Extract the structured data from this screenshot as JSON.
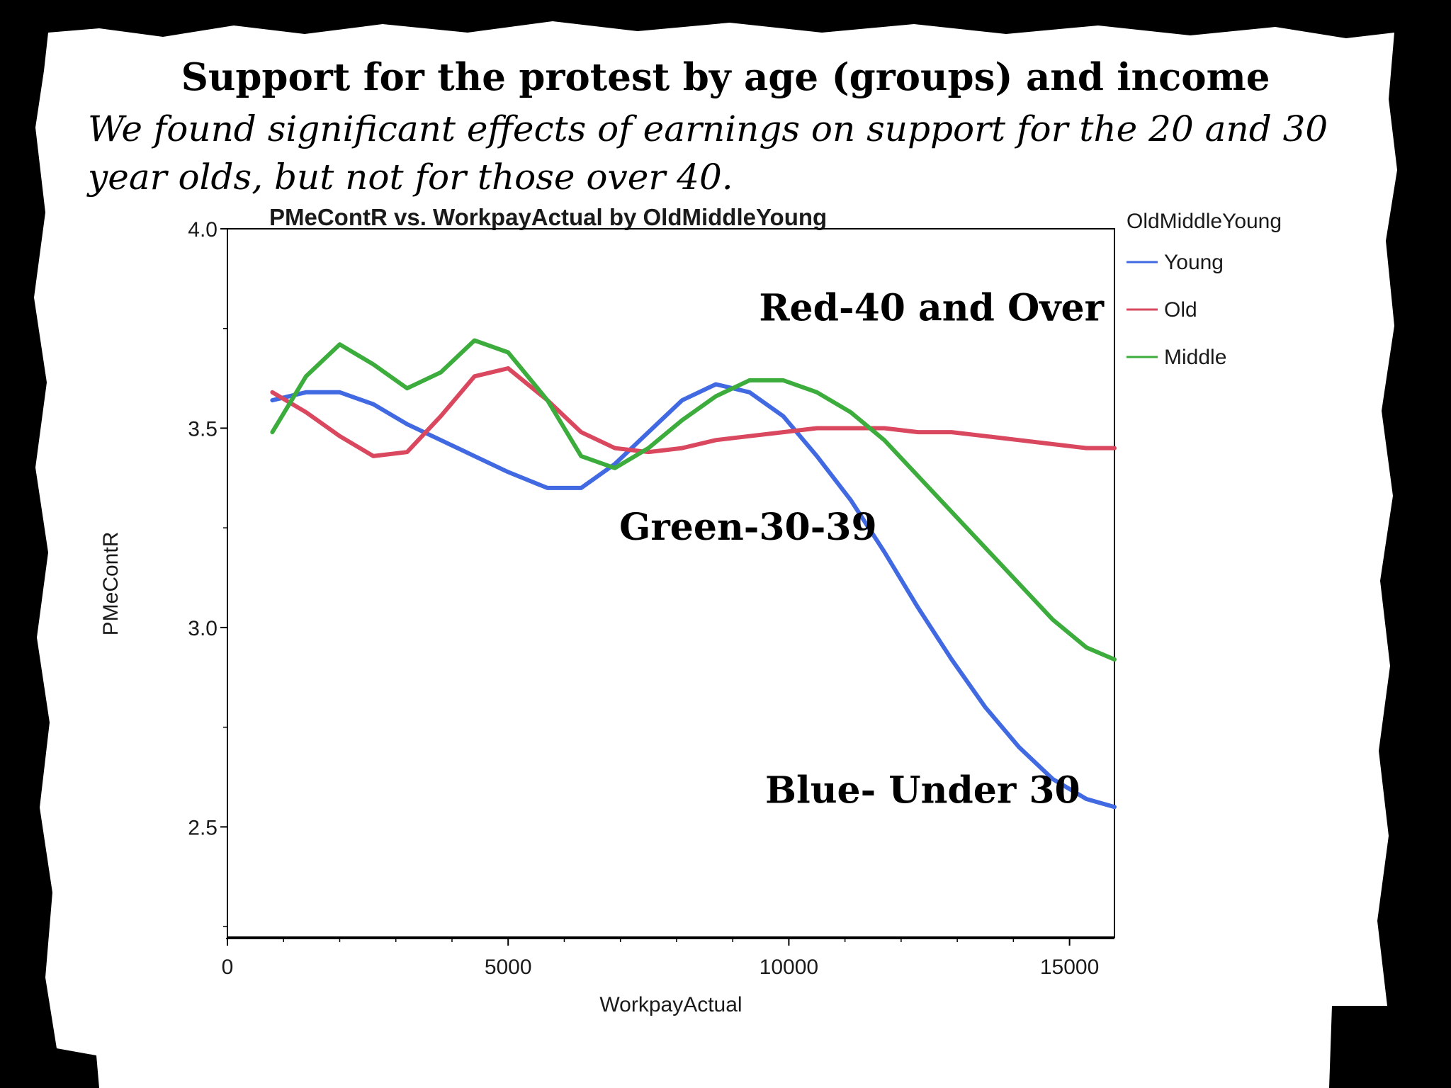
{
  "slide": {
    "title": "Support for the protest by age (groups) and income",
    "subtitle": "We found significant effects of earnings on support for the 20 and 30 year olds, but not for those over 40."
  },
  "chart_data": {
    "type": "line",
    "title": "PMeContR vs. WorkpayActual by OldMiddleYoung",
    "xlabel": "WorkpayActual",
    "ylabel": "PMeContR",
    "xlim": [
      0,
      15800
    ],
    "ylim": [
      2.22,
      4.0
    ],
    "x_ticks": [
      0,
      5000,
      10000,
      15000
    ],
    "x_tick_labels": [
      "0",
      "5000",
      "10000",
      "15000"
    ],
    "y_ticks": [
      2.5,
      3.0,
      3.5,
      4.0
    ],
    "y_tick_labels": [
      "2.5",
      "3.0",
      "3.5",
      "4.0"
    ],
    "legend_title": "OldMiddleYoung",
    "legend_position": "right",
    "series": [
      {
        "name": "Young",
        "color": "#4169e1",
        "points": [
          [
            800,
            3.57
          ],
          [
            1400,
            3.59
          ],
          [
            2000,
            3.59
          ],
          [
            2600,
            3.56
          ],
          [
            3200,
            3.51
          ],
          [
            3800,
            3.47
          ],
          [
            4400,
            3.43
          ],
          [
            5000,
            3.39
          ],
          [
            5700,
            3.35
          ],
          [
            6300,
            3.35
          ],
          [
            6900,
            3.41
          ],
          [
            7500,
            3.49
          ],
          [
            8100,
            3.57
          ],
          [
            8700,
            3.61
          ],
          [
            9300,
            3.59
          ],
          [
            9900,
            3.53
          ],
          [
            10500,
            3.43
          ],
          [
            11100,
            3.32
          ],
          [
            11700,
            3.19
          ],
          [
            12300,
            3.05
          ],
          [
            12900,
            2.92
          ],
          [
            13500,
            2.8
          ],
          [
            14100,
            2.7
          ],
          [
            14700,
            2.62
          ],
          [
            15300,
            2.57
          ],
          [
            15800,
            2.55
          ]
        ]
      },
      {
        "name": "Old",
        "color": "#d9485e",
        "points": [
          [
            800,
            3.59
          ],
          [
            1400,
            3.54
          ],
          [
            2000,
            3.48
          ],
          [
            2600,
            3.43
          ],
          [
            3200,
            3.44
          ],
          [
            3800,
            3.53
          ],
          [
            4400,
            3.63
          ],
          [
            5000,
            3.65
          ],
          [
            5700,
            3.57
          ],
          [
            6300,
            3.49
          ],
          [
            6900,
            3.45
          ],
          [
            7500,
            3.44
          ],
          [
            8100,
            3.45
          ],
          [
            8700,
            3.47
          ],
          [
            9300,
            3.48
          ],
          [
            9900,
            3.49
          ],
          [
            10500,
            3.5
          ],
          [
            11100,
            3.5
          ],
          [
            11700,
            3.5
          ],
          [
            12300,
            3.49
          ],
          [
            12900,
            3.49
          ],
          [
            13500,
            3.48
          ],
          [
            14100,
            3.47
          ],
          [
            14700,
            3.46
          ],
          [
            15300,
            3.45
          ],
          [
            15800,
            3.45
          ]
        ]
      },
      {
        "name": "Middle",
        "color": "#3cad3c",
        "points": [
          [
            800,
            3.49
          ],
          [
            1400,
            3.63
          ],
          [
            2000,
            3.71
          ],
          [
            2600,
            3.66
          ],
          [
            3200,
            3.6
          ],
          [
            3800,
            3.64
          ],
          [
            4400,
            3.72
          ],
          [
            5000,
            3.69
          ],
          [
            5700,
            3.57
          ],
          [
            6300,
            3.43
          ],
          [
            6900,
            3.4
          ],
          [
            7500,
            3.45
          ],
          [
            8100,
            3.52
          ],
          [
            8700,
            3.58
          ],
          [
            9300,
            3.62
          ],
          [
            9900,
            3.62
          ],
          [
            10500,
            3.59
          ],
          [
            11100,
            3.54
          ],
          [
            11700,
            3.47
          ],
          [
            12300,
            3.38
          ],
          [
            12900,
            3.29
          ],
          [
            13500,
            3.2
          ],
          [
            14100,
            3.11
          ],
          [
            14700,
            3.02
          ],
          [
            15300,
            2.95
          ],
          [
            15800,
            2.92
          ]
        ]
      }
    ],
    "annotations": [
      {
        "text": "Red-40 and Over",
        "x": 14300,
        "y": 3.77
      },
      {
        "text": "Green-30-39",
        "x": 9000,
        "y": 3.22
      },
      {
        "text": "Blue- Under 30",
        "x": 12100,
        "y": 2.56
      }
    ]
  }
}
